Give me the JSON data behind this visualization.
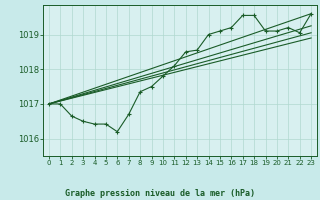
{
  "title": "Graphe pression niveau de la mer (hPa)",
  "bg_color": "#c8eaea",
  "plot_bg_color": "#d8f0f0",
  "grid_color": "#b0d8d0",
  "line_color": "#1a5c28",
  "xlim": [
    -0.5,
    23.5
  ],
  "ylim": [
    1015.5,
    1019.85
  ],
  "yticks": [
    1016,
    1017,
    1018,
    1019
  ],
  "xticks": [
    0,
    1,
    2,
    3,
    4,
    5,
    6,
    7,
    8,
    9,
    10,
    11,
    12,
    13,
    14,
    15,
    16,
    17,
    18,
    19,
    20,
    21,
    22,
    23
  ],
  "hours": [
    0,
    1,
    2,
    3,
    4,
    5,
    6,
    7,
    8,
    9,
    10,
    11,
    12,
    13,
    14,
    15,
    16,
    17,
    18,
    19,
    20,
    21,
    22,
    23
  ],
  "line1": [
    1017.0,
    1017.0,
    1016.65,
    1016.5,
    1016.42,
    1016.42,
    1016.2,
    1016.7,
    1017.35,
    1017.5,
    1017.8,
    1018.1,
    1018.5,
    1018.55,
    1019.0,
    1019.1,
    1019.2,
    1019.55,
    1019.55,
    1019.1,
    1019.1,
    1019.2,
    1019.05,
    1019.6
  ],
  "line2_x": [
    0,
    23
  ],
  "line2_y": [
    1017.0,
    1019.6
  ],
  "line3_x": [
    0,
    23
  ],
  "line3_y": [
    1017.0,
    1019.25
  ],
  "line4_x": [
    0,
    23
  ],
  "line4_y": [
    1017.0,
    1019.05
  ],
  "line5_x": [
    0,
    23
  ],
  "line5_y": [
    1017.0,
    1018.9
  ]
}
